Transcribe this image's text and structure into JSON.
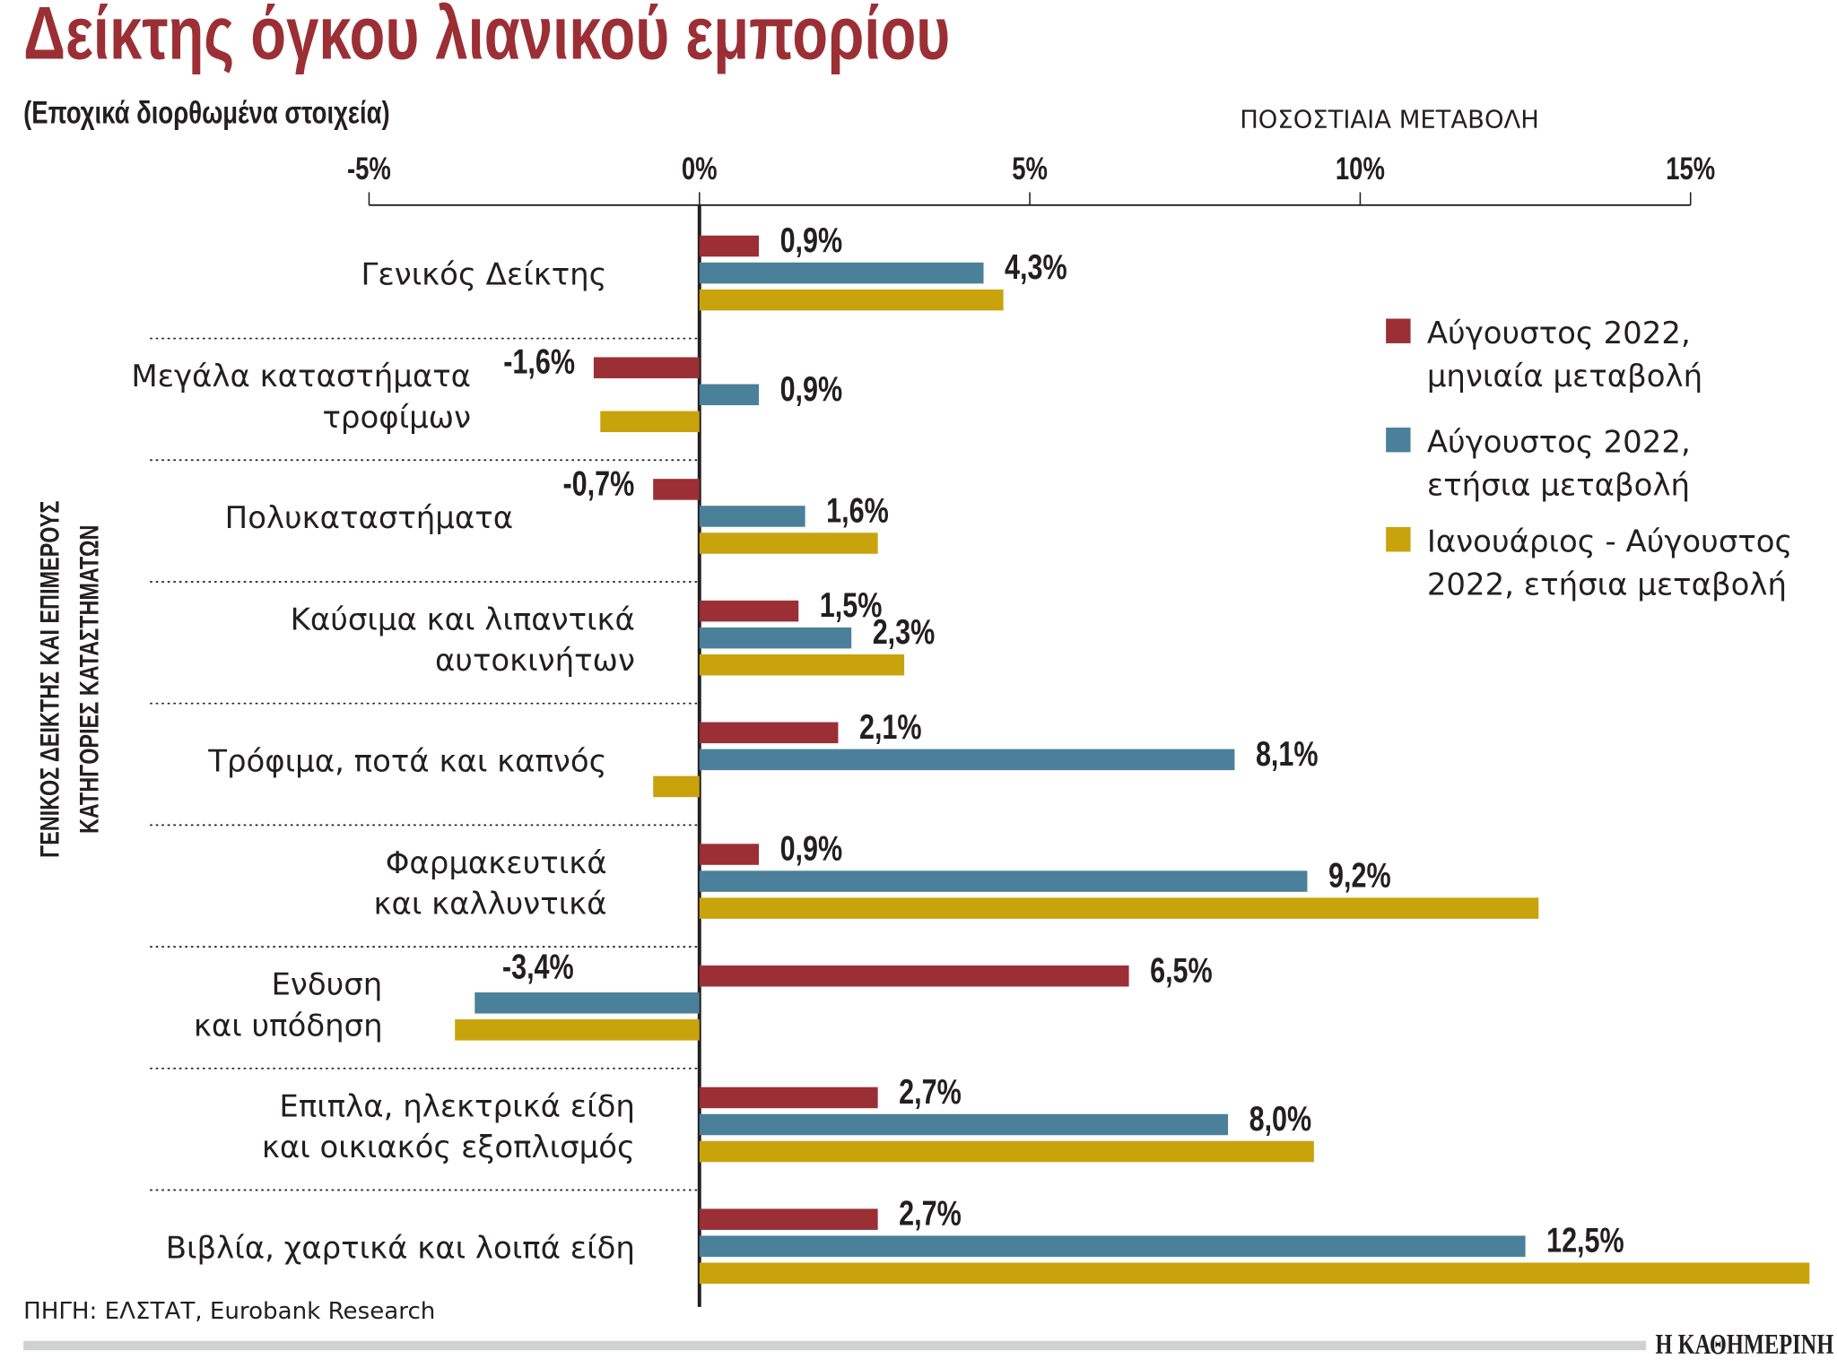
{
  "title": "Δείκτης όγκου λιανικού εμπορίου",
  "subtitle": "(Εποχικά διορθωμένα στοιχεία)",
  "source": "ΠΗΓΗ: ΕΛΣΤΑΤ, Eurobank Research",
  "logo": "Η ΚΑΘΗΜΕΡΙΝΗ",
  "chart_data": {
    "type": "bar",
    "orientation": "horizontal",
    "xlabel": "ΠΟΣΟΣΤΙΑΙΑ ΜΕΤΑΒΟΛΗ",
    "ylabel": [
      "ΓΕΝΙΚΟΣ ΔΕΙΚΤΗΣ ΚΑΙ ΕΠΙΜΕΡΟΥΣ",
      "ΚΑΤΗΓΟΡΙΕΣ ΚΑΤΑΣΤΗΜΑΤΩΝ"
    ],
    "xlim": [
      -5,
      15
    ],
    "xticks": [
      -5,
      0,
      5,
      10,
      15
    ],
    "xtick_labels": [
      "-5%",
      "0%",
      "5%",
      "10%",
      "15%"
    ],
    "axis_position": "top",
    "grid": false,
    "legend_position": "right",
    "categories": [
      [
        "Γενικός Δείκτης"
      ],
      [
        "Μεγάλα καταστήματα",
        "τροφίμων"
      ],
      [
        "Πολυκαταστήματα"
      ],
      [
        "Καύσιμα και λιπαντικά",
        "αυτοκινήτων"
      ],
      [
        "Τρόφιμα, ποτά και καπνός"
      ],
      [
        "Φαρμακευτικά",
        "και καλλυντικά"
      ],
      [
        "Ενδυση",
        "και υπόδηση"
      ],
      [
        "Επιπλα, ηλεκτρικά είδη",
        "και οικιακός εξοπλισμός"
      ],
      [
        "Βιβλία, χαρτικά και λοιπά είδη"
      ]
    ],
    "series": [
      {
        "name": [
          "Αύγουστος 2022,",
          "μηνιαία μεταβολή"
        ],
        "color": "#9b2f35",
        "values": [
          0.9,
          -1.6,
          -0.7,
          1.5,
          2.1,
          0.9,
          6.5,
          2.7,
          2.7
        ],
        "labels": [
          "0,9%",
          "-1,6%",
          "-0,7%",
          "1,5%",
          "2,1%",
          "0,9%",
          "6,5%",
          "2,7%",
          "2,7%"
        ]
      },
      {
        "name": [
          "Αύγουστος 2022,",
          "ετήσια μεταβολή"
        ],
        "color": "#4a8099",
        "values": [
          4.3,
          0.9,
          1.6,
          2.3,
          8.1,
          9.2,
          -3.4,
          8.0,
          12.5
        ],
        "labels": [
          "4,3%",
          "0,9%",
          "1,6%",
          "2,3%",
          "8,1%",
          "9,2%",
          "-3,4%",
          "8,0%",
          "12,5%"
        ]
      },
      {
        "name": [
          "Ιανουάριος - Αύγουστος",
          "2022, ετήσια μεταβολή"
        ],
        "color": "#c9a30c",
        "values": [
          4.6,
          -1.5,
          2.7,
          3.1,
          -0.7,
          12.7,
          -3.7,
          9.3,
          16.8
        ],
        "labels": [
          null,
          null,
          null,
          null,
          null,
          null,
          null,
          null,
          null
        ]
      }
    ]
  }
}
